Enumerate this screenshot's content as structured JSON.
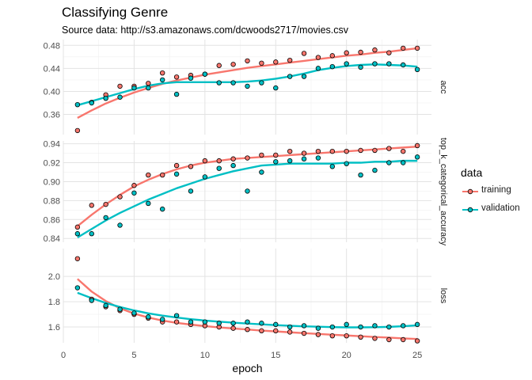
{
  "chart_data": {
    "type": "scatter",
    "title": "Classifying Genre",
    "subtitle": "Source data: http://s3.amazonaws.com/dcwoods2717/movies.csv",
    "xlabel": "epoch",
    "xlim": [
      0,
      26
    ],
    "xticks": [
      0,
      5,
      10,
      15,
      20,
      25
    ],
    "grid": true,
    "legend": {
      "title": "data",
      "position": "right",
      "entries": [
        "training",
        "validation"
      ]
    },
    "colors": {
      "training": "#F8766D",
      "validation": "#00BFC4"
    },
    "x": [
      1,
      2,
      3,
      4,
      5,
      6,
      7,
      8,
      9,
      10,
      11,
      12,
      13,
      14,
      15,
      16,
      17,
      18,
      19,
      20,
      21,
      22,
      23,
      24,
      25
    ],
    "panels": [
      {
        "label": "acc",
        "ylim": [
          0.325,
          0.49
        ],
        "yticks": [
          0.36,
          0.4,
          0.44,
          0.48
        ],
        "ytick_labels": [
          "0.36",
          "0.40",
          "0.44",
          "0.48"
        ],
        "series": [
          {
            "name": "training",
            "values": [
              0.332,
              0.381,
              0.394,
              0.409,
              0.409,
              0.414,
              0.432,
              0.425,
              0.428,
              0.43,
              0.445,
              0.447,
              0.453,
              0.449,
              0.451,
              0.454,
              0.466,
              0.459,
              0.462,
              0.467,
              0.468,
              0.472,
              0.467,
              0.475,
              0.475
            ],
            "smooth": [
              0.354,
              0.367,
              0.379,
              0.389,
              0.398,
              0.406,
              0.413,
              0.419,
              0.424,
              0.429,
              0.433,
              0.437,
              0.441,
              0.444,
              0.447,
              0.45,
              0.453,
              0.456,
              0.459,
              0.462,
              0.464,
              0.467,
              0.469,
              0.472,
              0.475
            ]
          },
          {
            "name": "validation",
            "values": [
              0.377,
              0.38,
              0.388,
              0.39,
              0.406,
              0.406,
              0.42,
              0.395,
              0.423,
              0.43,
              0.415,
              0.415,
              0.409,
              0.415,
              0.406,
              0.426,
              0.426,
              0.44,
              0.443,
              0.448,
              0.442,
              0.448,
              0.448,
              0.446,
              0.438
            ],
            "smooth": [
              0.376,
              0.383,
              0.39,
              0.397,
              0.404,
              0.41,
              0.414,
              0.416,
              0.416,
              0.416,
              0.416,
              0.416,
              0.417,
              0.419,
              0.422,
              0.426,
              0.431,
              0.437,
              0.441,
              0.444,
              0.446,
              0.447,
              0.446,
              0.445,
              0.443
            ]
          }
        ]
      },
      {
        "label": "top_k_categorical_accuracy",
        "ylim": [
          0.836,
          0.943
        ],
        "yticks": [
          0.84,
          0.86,
          0.88,
          0.9,
          0.92,
          0.94
        ],
        "ytick_labels": [
          "0.84",
          "0.86",
          "0.88",
          "0.90",
          "0.92",
          "0.94"
        ],
        "series": [
          {
            "name": "training",
            "values": [
              0.852,
              0.875,
              0.876,
              0.884,
              0.896,
              0.907,
              0.907,
              0.917,
              0.916,
              0.922,
              0.922,
              0.924,
              0.925,
              0.928,
              0.928,
              0.932,
              0.93,
              0.932,
              0.932,
              0.932,
              0.933,
              0.933,
              0.935,
              0.932,
              0.938
            ],
            "smooth": [
              0.853,
              0.865,
              0.876,
              0.886,
              0.895,
              0.902,
              0.908,
              0.913,
              0.917,
              0.92,
              0.922,
              0.924,
              0.925,
              0.926,
              0.927,
              0.928,
              0.929,
              0.93,
              0.931,
              0.932,
              0.933,
              0.934,
              0.935,
              0.936,
              0.937
            ]
          },
          {
            "name": "validation",
            "values": [
              0.845,
              0.845,
              0.862,
              0.854,
              0.888,
              0.877,
              0.871,
              0.908,
              0.89,
              0.905,
              0.914,
              0.917,
              0.89,
              0.91,
              0.921,
              0.922,
              0.924,
              0.925,
              0.916,
              0.919,
              0.907,
              0.912,
              0.92,
              0.92,
              0.926
            ],
            "smooth": [
              0.841,
              0.85,
              0.859,
              0.867,
              0.874,
              0.881,
              0.887,
              0.893,
              0.898,
              0.903,
              0.907,
              0.911,
              0.914,
              0.917,
              0.918,
              0.919,
              0.919,
              0.919,
              0.919,
              0.92,
              0.92,
              0.921,
              0.921,
              0.922,
              0.922
            ]
          }
        ]
      },
      {
        "label": "loss",
        "ylim": [
          1.475,
          2.22
        ],
        "yticks": [
          1.6,
          1.8,
          2.0
        ],
        "ytick_labels": [
          "1.6",
          "1.8",
          "2.0"
        ],
        "series": [
          {
            "name": "training",
            "values": [
              2.14,
              1.82,
              1.76,
              1.73,
              1.7,
              1.67,
              1.64,
              1.64,
              1.62,
              1.61,
              1.6,
              1.59,
              1.58,
              1.57,
              1.57,
              1.56,
              1.55,
              1.54,
              1.53,
              1.53,
              1.52,
              1.51,
              1.5,
              1.5,
              1.49
            ],
            "smooth": [
              1.98,
              1.88,
              1.805,
              1.748,
              1.706,
              1.675,
              1.651,
              1.633,
              1.619,
              1.607,
              1.597,
              1.588,
              1.58,
              1.572,
              1.565,
              1.558,
              1.551,
              1.545,
              1.539,
              1.533,
              1.527,
              1.521,
              1.516,
              1.51,
              1.505
            ]
          },
          {
            "name": "validation",
            "values": [
              1.91,
              1.81,
              1.77,
              1.74,
              1.71,
              1.68,
              1.66,
              1.69,
              1.64,
              1.64,
              1.63,
              1.63,
              1.64,
              1.63,
              1.62,
              1.6,
              1.61,
              1.59,
              1.6,
              1.62,
              1.6,
              1.61,
              1.6,
              1.61,
              1.62
            ],
            "smooth": [
              1.87,
              1.828,
              1.79,
              1.758,
              1.731,
              1.708,
              1.69,
              1.675,
              1.662,
              1.651,
              1.642,
              1.634,
              1.627,
              1.621,
              1.615,
              1.61,
              1.605,
              1.602,
              1.599,
              1.597,
              1.597,
              1.598,
              1.601,
              1.606,
              1.613
            ]
          }
        ]
      }
    ]
  }
}
